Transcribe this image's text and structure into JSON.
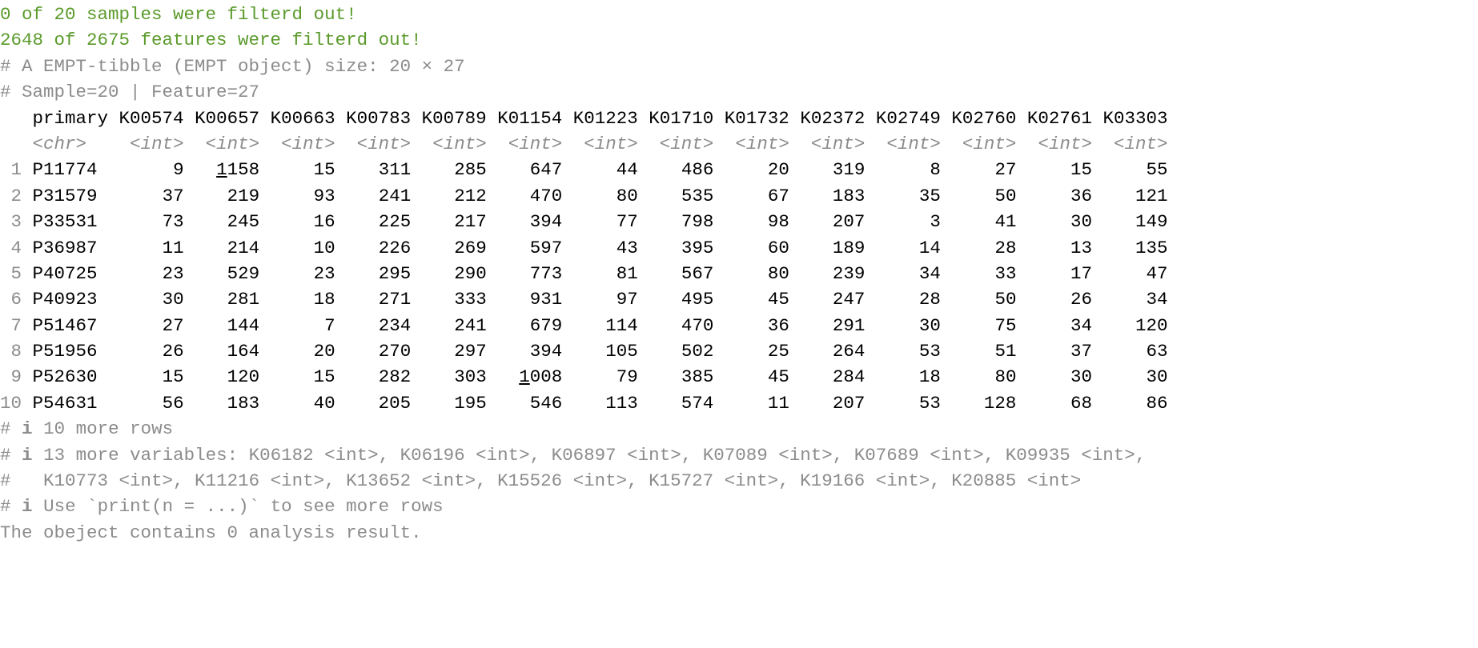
{
  "messages": {
    "samples_filtered": "0 of 20 samples were filterd out!",
    "features_filtered": "2648 of 2675 features were filterd out!",
    "tibble_header": "# A EMPT-tibble (EMPT object) size: 20 × 27",
    "tibble_summary": "# Sample=20 | Feature=27",
    "more_rows": "10 more rows",
    "more_vars_line1": "13 more variables: K06182 <int>, K06196 <int>, K06897 <int>, K07089 <int>, K07689 <int>, K09935 <int>,",
    "more_vars_line2": "K10773 <int>, K11216 <int>, K13652 <int>, K15526 <int>, K15727 <int>, K19166 <int>, K20885 <int>",
    "print_hint": "Use `print(n = ...)` to see more rows",
    "analysis_result": "The obeject contains 0 analysis result.",
    "comment_prefix": "#",
    "info_icon": "i"
  },
  "colors": {
    "message": "#5a9a2a",
    "comment": "#8c8c8c",
    "text": "#000000"
  },
  "table": {
    "columns": [
      "primary",
      "K00574",
      "K00657",
      "K00663",
      "K00783",
      "K00789",
      "K01154",
      "K01223",
      "K01710",
      "K01732",
      "K02372",
      "K02749",
      "K02760",
      "K02761",
      "K03303"
    ],
    "types": [
      "<chr>",
      "<int>",
      "<int>",
      "<int>",
      "<int>",
      "<int>",
      "<int>",
      "<int>",
      "<int>",
      "<int>",
      "<int>",
      "<int>",
      "<int>",
      "<int>",
      "<int>"
    ],
    "rows": [
      [
        "1",
        "P11774",
        "9",
        "1158",
        "15",
        "311",
        "285",
        "647",
        "44",
        "486",
        "20",
        "319",
        "8",
        "27",
        "15",
        "55"
      ],
      [
        "2",
        "P31579",
        "37",
        "219",
        "93",
        "241",
        "212",
        "470",
        "80",
        "535",
        "67",
        "183",
        "35",
        "50",
        "36",
        "121"
      ],
      [
        "3",
        "P33531",
        "73",
        "245",
        "16",
        "225",
        "217",
        "394",
        "77",
        "798",
        "98",
        "207",
        "3",
        "41",
        "30",
        "149"
      ],
      [
        "4",
        "P36987",
        "11",
        "214",
        "10",
        "226",
        "269",
        "597",
        "43",
        "395",
        "60",
        "189",
        "14",
        "28",
        "13",
        "135"
      ],
      [
        "5",
        "P40725",
        "23",
        "529",
        "23",
        "295",
        "290",
        "773",
        "81",
        "567",
        "80",
        "239",
        "34",
        "33",
        "17",
        "47"
      ],
      [
        "6",
        "P40923",
        "30",
        "281",
        "18",
        "271",
        "333",
        "931",
        "97",
        "495",
        "45",
        "247",
        "28",
        "50",
        "26",
        "34"
      ],
      [
        "7",
        "P51467",
        "27",
        "144",
        "7",
        "234",
        "241",
        "679",
        "114",
        "470",
        "36",
        "291",
        "30",
        "75",
        "34",
        "120"
      ],
      [
        "8",
        "P51956",
        "26",
        "164",
        "20",
        "270",
        "297",
        "394",
        "105",
        "502",
        "25",
        "264",
        "53",
        "51",
        "37",
        "63"
      ],
      [
        "9",
        "P52630",
        "15",
        "120",
        "15",
        "282",
        "303",
        "1008",
        "79",
        "385",
        "45",
        "284",
        "18",
        "80",
        "30",
        "30"
      ],
      [
        "10",
        "P54631",
        "56",
        "183",
        "40",
        "205",
        "195",
        "546",
        "113",
        "574",
        "11",
        "207",
        "53",
        "128",
        "68",
        "86"
      ]
    ]
  }
}
